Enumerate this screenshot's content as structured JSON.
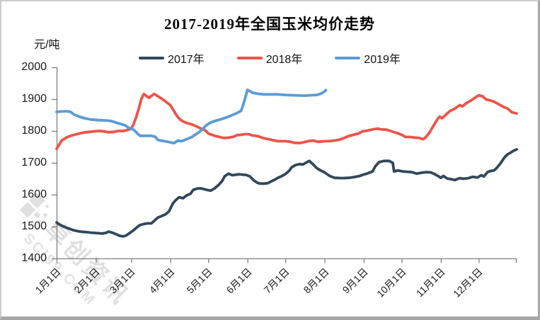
{
  "title": "2017-2019年全国玉米均价走势",
  "y_axis_unit": "元/吨",
  "watermark": {
    "brand": "卓创资讯",
    "domain": "SCI99.COM"
  },
  "colors": {
    "axis": "#808080",
    "label": "#1a1a1a"
  },
  "chart_data": {
    "type": "line",
    "title": "2017-2019年全国玉米均价走势",
    "ylabel": "元/吨",
    "ylim": [
      1400,
      2000
    ],
    "y_ticks": [
      2000,
      1900,
      1800,
      1700,
      1600,
      1500,
      1400
    ],
    "x_tick_labels": [
      "1月1日",
      "2月1日",
      "3月1日",
      "4月1日",
      "5月1日",
      "6月1日",
      "7月1日",
      "8月1日",
      "9月1日",
      "10月1日",
      "11月1日",
      "12月1日"
    ],
    "x_tick_days": [
      1,
      32,
      60,
      91,
      121,
      152,
      182,
      213,
      244,
      274,
      305,
      335
    ],
    "x_domain_days": [
      1,
      365
    ],
    "grid": false,
    "legend_position": "top-center",
    "series": [
      {
        "name": "2017年",
        "color": "#31485b",
        "points": [
          [
            1,
            1513
          ],
          [
            3,
            1507
          ],
          [
            6,
            1501
          ],
          [
            9,
            1496
          ],
          [
            12,
            1492
          ],
          [
            14,
            1489
          ],
          [
            17,
            1486
          ],
          [
            20,
            1484
          ],
          [
            23,
            1483
          ],
          [
            26,
            1482
          ],
          [
            28,
            1481
          ],
          [
            31,
            1480
          ],
          [
            34,
            1479
          ],
          [
            37,
            1478
          ],
          [
            40,
            1480
          ],
          [
            42,
            1484
          ],
          [
            45,
            1481
          ],
          [
            48,
            1476
          ],
          [
            51,
            1471
          ],
          [
            54,
            1469
          ],
          [
            56,
            1472
          ],
          [
            59,
            1480
          ],
          [
            62,
            1489
          ],
          [
            65,
            1499
          ],
          [
            67,
            1505
          ],
          [
            70,
            1508
          ],
          [
            73,
            1510
          ],
          [
            76,
            1510
          ],
          [
            79,
            1521
          ],
          [
            81,
            1528
          ],
          [
            84,
            1533
          ],
          [
            87,
            1538
          ],
          [
            90,
            1548
          ],
          [
            93,
            1573
          ],
          [
            95,
            1582
          ],
          [
            98,
            1592
          ],
          [
            101,
            1589
          ],
          [
            104,
            1598
          ],
          [
            107,
            1603
          ],
          [
            109,
            1615
          ],
          [
            112,
            1619
          ],
          [
            115,
            1620
          ],
          [
            118,
            1617
          ],
          [
            120,
            1615
          ],
          [
            123,
            1613
          ],
          [
            126,
            1620
          ],
          [
            129,
            1630
          ],
          [
            132,
            1643
          ],
          [
            134,
            1658
          ],
          [
            137,
            1666
          ],
          [
            140,
            1661
          ],
          [
            143,
            1663
          ],
          [
            146,
            1664
          ],
          [
            148,
            1663
          ],
          [
            151,
            1662
          ],
          [
            154,
            1657
          ],
          [
            157,
            1645
          ],
          [
            160,
            1637
          ],
          [
            162,
            1635
          ],
          [
            165,
            1635
          ],
          [
            168,
            1636
          ],
          [
            171,
            1642
          ],
          [
            174,
            1648
          ],
          [
            176,
            1653
          ],
          [
            179,
            1658
          ],
          [
            182,
            1665
          ],
          [
            185,
            1675
          ],
          [
            187,
            1686
          ],
          [
            190,
            1693
          ],
          [
            193,
            1696
          ],
          [
            196,
            1695
          ],
          [
            199,
            1702
          ],
          [
            201,
            1706
          ],
          [
            204,
            1695
          ],
          [
            207,
            1683
          ],
          [
            210,
            1676
          ],
          [
            213,
            1670
          ],
          [
            217,
            1659
          ],
          [
            221,
            1653
          ],
          [
            227,
            1652
          ],
          [
            232,
            1653
          ],
          [
            236,
            1655
          ],
          [
            241,
            1659
          ],
          [
            243,
            1662
          ],
          [
            247,
            1667
          ],
          [
            251,
            1673
          ],
          [
            253,
            1688
          ],
          [
            256,
            1702
          ],
          [
            260,
            1706
          ],
          [
            264,
            1706
          ],
          [
            267,
            1700
          ],
          [
            268,
            1673
          ],
          [
            271,
            1676
          ],
          [
            275,
            1673
          ],
          [
            278,
            1672
          ],
          [
            282,
            1671
          ],
          [
            286,
            1666
          ],
          [
            290,
            1669
          ],
          [
            294,
            1671
          ],
          [
            297,
            1670
          ],
          [
            300,
            1665
          ],
          [
            303,
            1658
          ],
          [
            305,
            1653
          ],
          [
            307,
            1659
          ],
          [
            310,
            1651
          ],
          [
            314,
            1648
          ],
          [
            316,
            1646
          ],
          [
            320,
            1652
          ],
          [
            323,
            1650
          ],
          [
            327,
            1652
          ],
          [
            330,
            1656
          ],
          [
            334,
            1654
          ],
          [
            337,
            1661
          ],
          [
            339,
            1657
          ],
          [
            342,
            1671
          ],
          [
            344,
            1674
          ],
          [
            347,
            1676
          ],
          [
            349,
            1683
          ],
          [
            352,
            1697
          ],
          [
            354,
            1709
          ],
          [
            356,
            1720
          ],
          [
            358,
            1727
          ],
          [
            361,
            1734
          ],
          [
            363,
            1739
          ],
          [
            365,
            1742
          ]
        ]
      },
      {
        "name": "2018年",
        "color": "#ec5449",
        "points": [
          [
            1,
            1744
          ],
          [
            5,
            1770
          ],
          [
            9,
            1780
          ],
          [
            13,
            1786
          ],
          [
            16,
            1789
          ],
          [
            20,
            1793
          ],
          [
            24,
            1796
          ],
          [
            27,
            1797
          ],
          [
            31,
            1799
          ],
          [
            35,
            1800
          ],
          [
            38,
            1799
          ],
          [
            42,
            1796
          ],
          [
            46,
            1797
          ],
          [
            50,
            1800
          ],
          [
            54,
            1800
          ],
          [
            57,
            1803
          ],
          [
            60,
            1807
          ],
          [
            62,
            1822
          ],
          [
            64,
            1844
          ],
          [
            66,
            1870
          ],
          [
            68,
            1900
          ],
          [
            70,
            1916
          ],
          [
            72,
            1910
          ],
          [
            74,
            1904
          ],
          [
            76,
            1910
          ],
          [
            78,
            1916
          ],
          [
            80,
            1912
          ],
          [
            82,
            1907
          ],
          [
            85,
            1899
          ],
          [
            88,
            1890
          ],
          [
            91,
            1881
          ],
          [
            93,
            1868
          ],
          [
            95,
            1855
          ],
          [
            97,
            1843
          ],
          [
            99,
            1835
          ],
          [
            101,
            1830
          ],
          [
            104,
            1825
          ],
          [
            107,
            1822
          ],
          [
            110,
            1817
          ],
          [
            113,
            1812
          ],
          [
            116,
            1806
          ],
          [
            119,
            1801
          ],
          [
            121,
            1792
          ],
          [
            126,
            1785
          ],
          [
            130,
            1781
          ],
          [
            133,
            1778
          ],
          [
            137,
            1779
          ],
          [
            141,
            1782
          ],
          [
            144,
            1787
          ],
          [
            147,
            1788
          ],
          [
            150,
            1790
          ],
          [
            153,
            1790
          ],
          [
            156,
            1786
          ],
          [
            160,
            1784
          ],
          [
            162,
            1781
          ],
          [
            165,
            1777
          ],
          [
            169,
            1774
          ],
          [
            172,
            1771
          ],
          [
            176,
            1768
          ],
          [
            179,
            1768
          ],
          [
            182,
            1768
          ],
          [
            186,
            1766
          ],
          [
            189,
            1763
          ],
          [
            193,
            1762
          ],
          [
            196,
            1764
          ],
          [
            200,
            1768
          ],
          [
            204,
            1770
          ],
          [
            208,
            1766
          ],
          [
            211,
            1767
          ],
          [
            214,
            1768
          ],
          [
            217,
            1768
          ],
          [
            221,
            1770
          ],
          [
            225,
            1773
          ],
          [
            228,
            1777
          ],
          [
            232,
            1784
          ],
          [
            236,
            1788
          ],
          [
            240,
            1792
          ],
          [
            243,
            1799
          ],
          [
            247,
            1801
          ],
          [
            251,
            1805
          ],
          [
            255,
            1807
          ],
          [
            258,
            1805
          ],
          [
            262,
            1804
          ],
          [
            266,
            1799
          ],
          [
            270,
            1794
          ],
          [
            274,
            1788
          ],
          [
            277,
            1781
          ],
          [
            281,
            1781
          ],
          [
            285,
            1779
          ],
          [
            288,
            1778
          ],
          [
            291,
            1774
          ],
          [
            293,
            1780
          ],
          [
            296,
            1795
          ],
          [
            299,
            1815
          ],
          [
            302,
            1835
          ],
          [
            304,
            1845
          ],
          [
            306,
            1840
          ],
          [
            309,
            1851
          ],
          [
            312,
            1862
          ],
          [
            316,
            1870
          ],
          [
            320,
            1881
          ],
          [
            322,
            1877
          ],
          [
            325,
            1887
          ],
          [
            329,
            1896
          ],
          [
            333,
            1907
          ],
          [
            335,
            1912
          ],
          [
            338,
            1909
          ],
          [
            341,
            1899
          ],
          [
            344,
            1896
          ],
          [
            347,
            1892
          ],
          [
            349,
            1888
          ],
          [
            352,
            1881
          ],
          [
            355,
            1875
          ],
          [
            358,
            1870
          ],
          [
            361,
            1859
          ],
          [
            365,
            1855
          ]
        ]
      },
      {
        "name": "2019年",
        "color": "#5b9bd5",
        "points": [
          [
            1,
            1860
          ],
          [
            5,
            1861
          ],
          [
            9,
            1862
          ],
          [
            12,
            1860
          ],
          [
            15,
            1851
          ],
          [
            19,
            1845
          ],
          [
            23,
            1840
          ],
          [
            28,
            1836
          ],
          [
            34,
            1834
          ],
          [
            40,
            1833
          ],
          [
            43,
            1832
          ],
          [
            46,
            1829
          ],
          [
            49,
            1825
          ],
          [
            52,
            1822
          ],
          [
            55,
            1818
          ],
          [
            57,
            1813
          ],
          [
            59,
            1808
          ],
          [
            62,
            1804
          ],
          [
            64,
            1796
          ],
          [
            66,
            1788
          ],
          [
            67,
            1785
          ],
          [
            71,
            1785
          ],
          [
            76,
            1785
          ],
          [
            79,
            1782
          ],
          [
            81,
            1772
          ],
          [
            86,
            1768
          ],
          [
            89,
            1766
          ],
          [
            91,
            1764
          ],
          [
            94,
            1762
          ],
          [
            97,
            1770
          ],
          [
            100,
            1768
          ],
          [
            103,
            1773
          ],
          [
            105,
            1776
          ],
          [
            108,
            1781
          ],
          [
            111,
            1789
          ],
          [
            114,
            1797
          ],
          [
            117,
            1808
          ],
          [
            119,
            1816
          ],
          [
            122,
            1825
          ],
          [
            126,
            1831
          ],
          [
            132,
            1838
          ],
          [
            137,
            1845
          ],
          [
            143,
            1855
          ],
          [
            147,
            1863
          ],
          [
            148,
            1875
          ],
          [
            150,
            1900
          ],
          [
            152,
            1929
          ],
          [
            154,
            1925
          ],
          [
            156,
            1920
          ],
          [
            160,
            1917
          ],
          [
            165,
            1915
          ],
          [
            171,
            1915
          ],
          [
            176,
            1915
          ],
          [
            182,
            1913
          ],
          [
            189,
            1912
          ],
          [
            197,
            1911
          ],
          [
            201,
            1912
          ],
          [
            207,
            1913
          ],
          [
            210,
            1917
          ],
          [
            213,
            1924
          ],
          [
            214,
            1928
          ]
        ]
      }
    ]
  }
}
